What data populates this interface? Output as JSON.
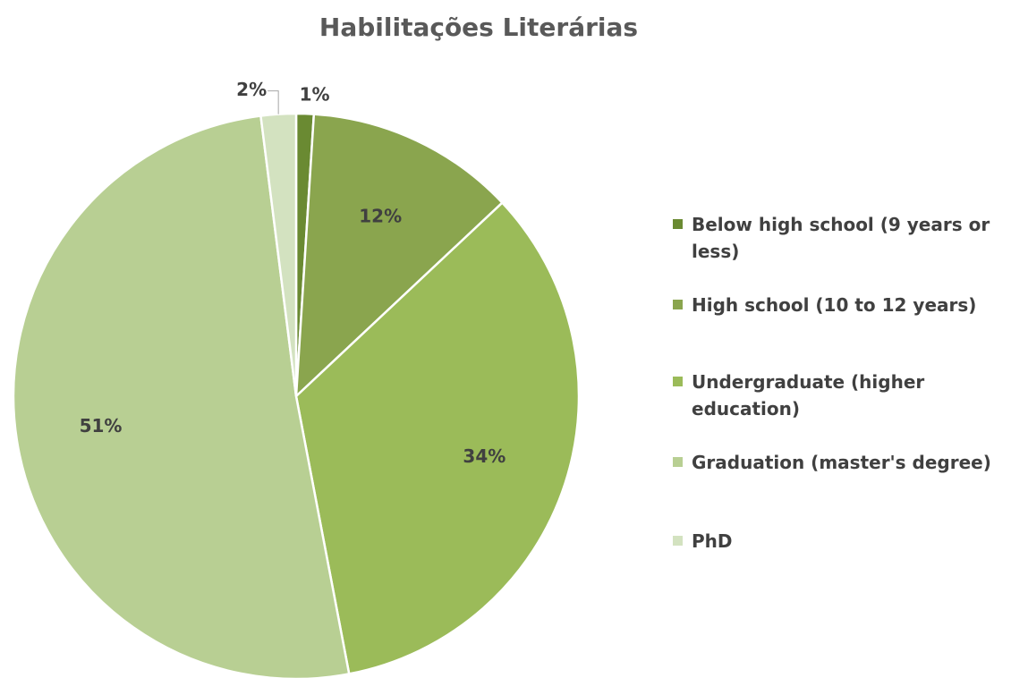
{
  "chart_data": {
    "type": "pie",
    "title": "Habilitações Literárias",
    "categories": [
      "Below high school (9 years or less)",
      "High school (10 to 12 years)",
      "Undergraduate (higher education)",
      "Graduation (master's degree)",
      "PhD"
    ],
    "values": [
      1,
      12,
      34,
      51,
      2
    ],
    "data_labels": [
      "1%",
      "12%",
      "34%",
      "51%",
      "2%"
    ],
    "colors": [
      "#6a8a32",
      "#8aa54e",
      "#9bbb59",
      "#b8cf93",
      "#d3e2c0"
    ],
    "legend_position": "right"
  },
  "legend": {
    "items": [
      {
        "label": "Below high school (9 years or less)",
        "color": "#6a8a32"
      },
      {
        "label": "High school (10 to 12 years)",
        "color": "#8aa54e"
      },
      {
        "label": "Undergraduate (higher education)",
        "color": "#9bbb59"
      },
      {
        "label": "Graduation (master's degree)",
        "color": "#b8cf93"
      },
      {
        "label": "PhD",
        "color": "#d3e2c0"
      }
    ]
  }
}
